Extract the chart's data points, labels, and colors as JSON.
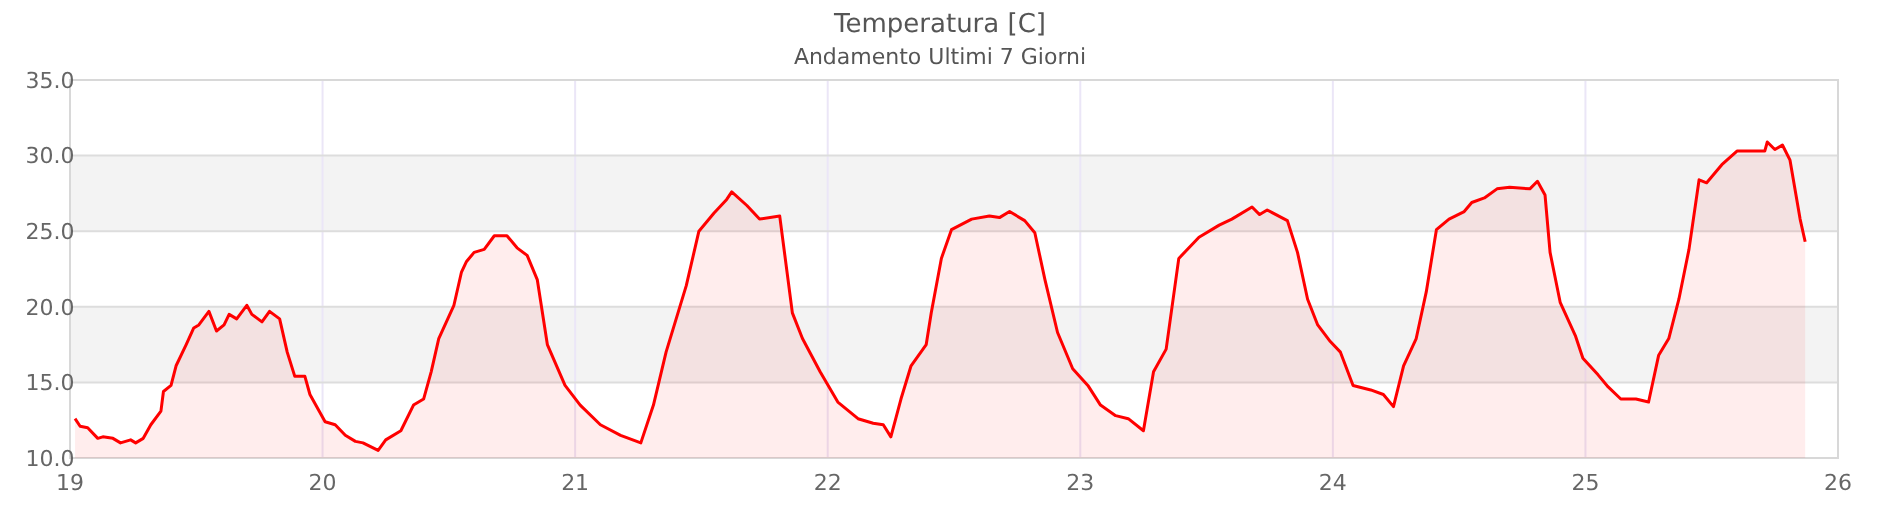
{
  "chart_data": {
    "type": "area",
    "title": "Temperatura [C]",
    "subtitle": "Andamento Ultimi 7 Giorni",
    "series": [
      {
        "color": "#ff0000",
        "x": [
          19.02,
          19.04,
          19.07,
          19.11,
          19.13,
          19.17,
          19.2,
          19.24,
          19.26,
          19.29,
          19.32,
          19.36,
          19.37,
          19.4,
          19.42,
          19.46,
          19.49,
          19.51,
          19.55,
          19.58,
          19.61,
          19.63,
          19.66,
          19.7,
          19.72,
          19.76,
          19.79,
          19.83,
          19.86,
          19.89,
          19.93,
          19.95,
          20.01,
          20.05,
          20.09,
          20.13,
          20.16,
          20.22,
          20.25,
          20.31,
          20.36,
          20.4,
          20.43,
          20.46,
          20.52,
          20.55,
          20.57,
          20.6,
          20.64,
          20.68,
          20.73,
          20.77,
          20.81,
          20.85,
          20.89,
          20.96,
          21.02,
          21.1,
          21.18,
          21.26,
          21.31,
          21.36,
          21.44,
          21.49,
          21.55,
          21.6,
          21.62,
          21.68,
          21.73,
          21.81,
          21.86,
          21.9,
          21.97,
          22.04,
          22.12,
          22.18,
          22.22,
          22.25,
          22.29,
          22.33,
          22.39,
          22.41,
          22.45,
          22.49,
          22.57,
          22.64,
          22.68,
          22.72,
          22.78,
          22.82,
          22.86,
          22.91,
          22.97,
          23.03,
          23.08,
          23.14,
          23.19,
          23.25,
          23.29,
          23.34,
          23.39,
          23.47,
          23.55,
          23.6,
          23.68,
          23.71,
          23.74,
          23.82,
          23.86,
          23.9,
          23.94,
          23.99,
          24.03,
          24.08,
          24.15,
          24.2,
          24.24,
          24.28,
          24.33,
          24.37,
          24.41,
          24.46,
          24.52,
          24.55,
          24.6,
          24.65,
          24.7,
          24.78,
          24.81,
          24.84,
          24.86,
          24.9,
          24.96,
          24.99,
          25.05,
          25.09,
          25.14,
          25.2,
          25.25,
          25.29,
          25.33,
          25.37,
          25.41,
          25.45,
          25.48,
          25.54,
          25.6,
          25.65,
          25.71,
          25.72,
          25.75,
          25.78,
          25.81,
          25.85,
          25.87
        ],
        "values": [
          12.6,
          12.1,
          12.0,
          11.3,
          11.4,
          11.3,
          11.0,
          11.2,
          11.0,
          11.3,
          12.2,
          13.1,
          14.4,
          14.8,
          16.1,
          17.5,
          18.6,
          18.8,
          19.7,
          18.4,
          18.8,
          19.5,
          19.2,
          20.1,
          19.5,
          19.0,
          19.7,
          19.2,
          17.0,
          15.4,
          15.4,
          14.2,
          12.4,
          12.2,
          11.5,
          11.1,
          11.0,
          10.5,
          11.2,
          11.8,
          13.5,
          13.9,
          15.7,
          17.9,
          20.1,
          22.3,
          23.0,
          23.6,
          23.8,
          24.7,
          24.7,
          23.9,
          23.4,
          21.8,
          17.5,
          14.8,
          13.5,
          12.2,
          11.5,
          11.0,
          13.5,
          17.0,
          21.4,
          25.0,
          26.2,
          27.1,
          27.6,
          26.7,
          25.8,
          26.0,
          19.6,
          17.9,
          15.7,
          13.7,
          12.6,
          12.3,
          12.2,
          11.4,
          13.9,
          16.1,
          17.5,
          19.6,
          23.2,
          25.1,
          25.8,
          26.0,
          25.9,
          26.3,
          25.7,
          24.9,
          21.8,
          18.3,
          15.9,
          14.8,
          13.5,
          12.8,
          12.6,
          11.8,
          15.7,
          17.2,
          23.2,
          24.6,
          25.4,
          25.8,
          26.6,
          26.1,
          26.4,
          25.7,
          23.6,
          20.5,
          18.8,
          17.7,
          17.0,
          14.8,
          14.5,
          14.2,
          13.4,
          16.1,
          17.9,
          21.0,
          25.1,
          25.8,
          26.3,
          26.9,
          27.2,
          27.8,
          27.9,
          27.8,
          28.3,
          27.4,
          23.6,
          20.3,
          18.1,
          16.6,
          15.5,
          14.7,
          13.9,
          13.9,
          13.7,
          16.8,
          17.9,
          20.5,
          23.8,
          28.4,
          28.2,
          29.4,
          30.3,
          30.3,
          30.3,
          30.9,
          30.4,
          30.7,
          29.7,
          25.8,
          24.3
        ]
      }
    ],
    "xlim": [
      19,
      26
    ],
    "xticks": [
      19,
      20,
      21,
      22,
      23,
      24,
      25,
      26
    ],
    "ylim": [
      10,
      35
    ],
    "yticks": [
      {
        "value": 10,
        "label": "10.0"
      },
      {
        "value": 15,
        "label": "15.0"
      },
      {
        "value": 20,
        "label": "20.0"
      },
      {
        "value": 25,
        "label": "25.0"
      },
      {
        "value": 30,
        "label": "30.0"
      },
      {
        "value": 35,
        "label": "35.0"
      }
    ],
    "bands": [
      {
        "axis": "y",
        "from": 15,
        "to": 20,
        "color": "#f3f3f3"
      },
      {
        "axis": "y",
        "from": 25,
        "to": 30,
        "color": "#f3f3f3"
      }
    ],
    "grid": true,
    "marker": "none",
    "line_style": "solid"
  }
}
